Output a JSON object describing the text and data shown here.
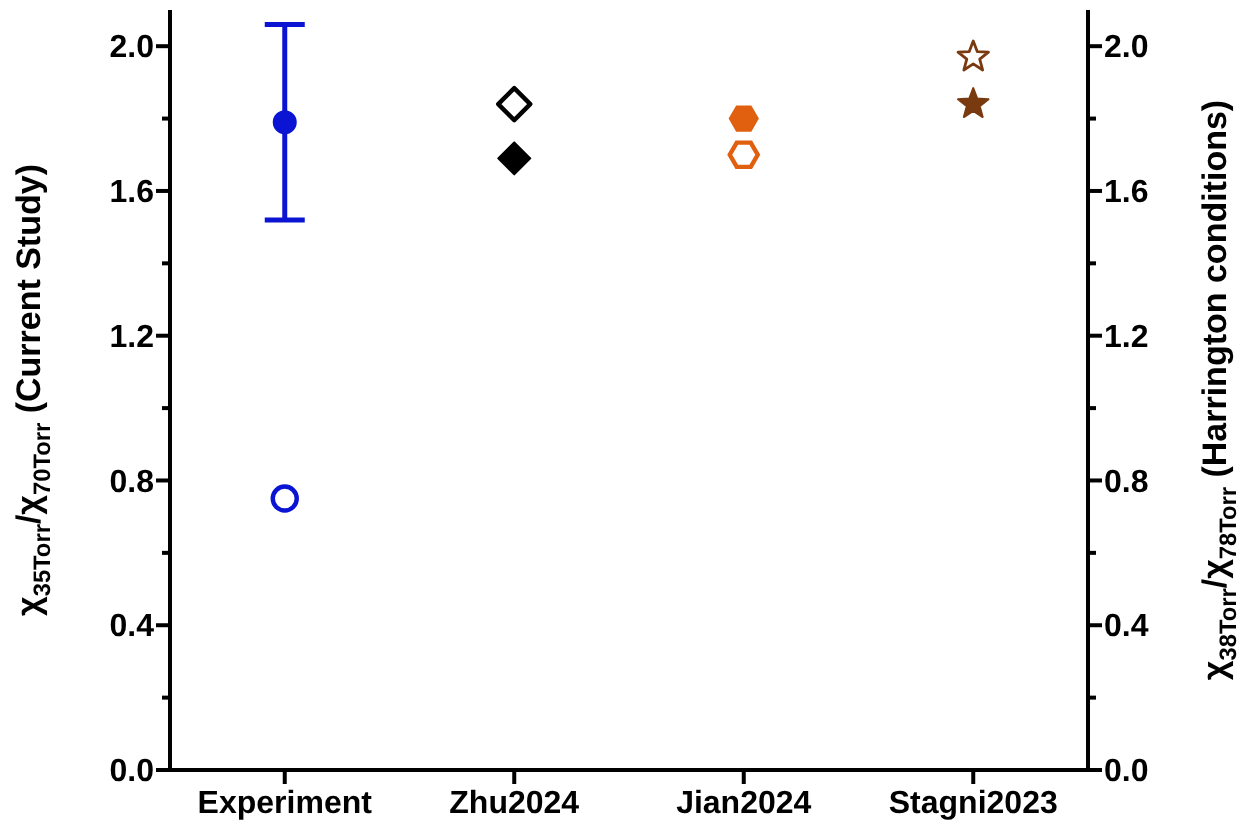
{
  "chart_data": {
    "type": "scatter",
    "ylabel": "χ$_{35Torr}$/χ$_{70Torr}$ (Current Study)",
    "y2label": "χ$_{38Torr}$/χ$_{78Torr}$ (Harrington conditions)",
    "categories": [
      "Experiment",
      "Zhu2024",
      "Jian2024",
      "Stagni2023"
    ],
    "ylim": [
      0,
      2.1
    ],
    "yticks": [
      {
        "value": 0,
        "label": "0.0"
      },
      {
        "value": 0.2,
        "label": null
      },
      {
        "value": 0.4,
        "label": "0.4"
      },
      {
        "value": 0.6,
        "label": null
      },
      {
        "value": 0.8,
        "label": "0.8"
      },
      {
        "value": 1,
        "label": null
      },
      {
        "value": 1.2,
        "label": "1.2"
      },
      {
        "value": 1.4,
        "label": null
      },
      {
        "value": 1.6,
        "label": "1.6"
      },
      {
        "value": 1.8,
        "label": null
      },
      {
        "value": 2,
        "label": "2.0"
      }
    ],
    "y2lim": [
      0,
      2.1
    ],
    "y2ticks": [
      {
        "value": 0,
        "label": "0.0"
      },
      {
        "value": 0.2,
        "label": null
      },
      {
        "value": 0.4,
        "label": "0.4"
      },
      {
        "value": 0.6,
        "label": null
      },
      {
        "value": 0.8,
        "label": "0.8"
      },
      {
        "value": 1,
        "label": null
      },
      {
        "value": 1.2,
        "label": "1.2"
      },
      {
        "value": 1.4,
        "label": null
      },
      {
        "value": 1.6,
        "label": "1.6"
      },
      {
        "value": 1.8,
        "label": null
      },
      {
        "value": 2,
        "label": "2.0"
      }
    ],
    "grid": false,
    "legend": false,
    "series": [
      {
        "axis": "y",
        "marker": "circle",
        "color": "#0a14d2",
        "values": [
          1.79,
          null,
          null,
          null
        ],
        "errors": [
          [
            1.52,
            2.06
          ],
          null,
          null,
          null
        ]
      },
      {
        "axis": "y2",
        "marker": "circle",
        "color": "#0a14d2",
        "values": [
          0.75,
          null,
          null,
          null
        ]
      },
      {
        "axis": "y",
        "marker": "diamond",
        "color": "#000000",
        "values": [
          null,
          1.69,
          null,
          null
        ]
      },
      {
        "axis": "y2",
        "marker": "diamond",
        "color": "#000000",
        "values": [
          null,
          1.84,
          null,
          null
        ]
      },
      {
        "axis": "y",
        "color": "#e06010",
        "values": [
          null,
          null,
          1.8,
          null
        ]
      },
      {
        "axis": "y2",
        "color": "#e06010",
        "values": [
          null,
          null,
          1.7,
          null
        ]
      },
      {
        "axis": "y",
        "marker": "star",
        "color": "#7a3a10",
        "values": [
          null,
          null,
          null,
          1.84
        ]
      },
      {
        "axis": "y2",
        "marker": "star",
        "color": "#7a3a10",
        "values": [
          null,
          null,
          null,
          1.97
        ]
      }
    ]
  }
}
